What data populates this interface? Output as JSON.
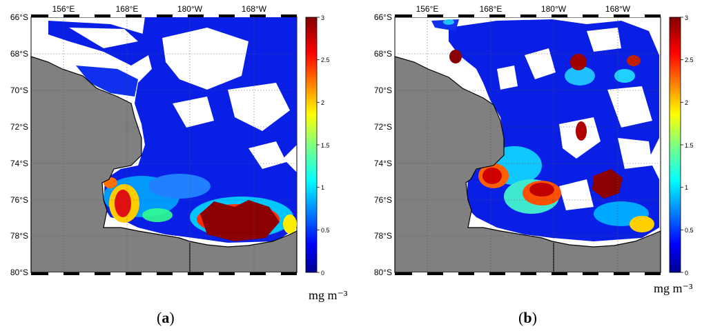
{
  "panels": [
    {
      "id": "a",
      "label": "a",
      "lon_ticks": [
        "156°E",
        "168°E",
        "180°W",
        "168°W"
      ],
      "lat_ticks": [
        "66°S",
        "68°S",
        "70°S",
        "72°S",
        "74°S",
        "76°S",
        "78°S",
        "80°S"
      ],
      "colorbar_ticks": [
        "3",
        "2.5",
        "2",
        "1.5",
        "1",
        "0.5",
        "0"
      ],
      "unit": "mg m⁻³"
    },
    {
      "id": "b",
      "label": "b",
      "lon_ticks": [
        "156°E",
        "168°E",
        "180°W",
        "168°W"
      ],
      "lat_ticks": [
        "66°S",
        "68°S",
        "70°S",
        "72°S",
        "74°S",
        "76°S",
        "78°S",
        "80°S"
      ],
      "colorbar_ticks": [
        "3",
        "2.5",
        "2",
        "1.5",
        "1",
        "0.5",
        "0"
      ],
      "unit": "mg m⁻³"
    }
  ],
  "colors": {
    "land": "#808080",
    "coast": "#000000",
    "colormap": [
      "#00008f",
      "#0000ff",
      "#0080ff",
      "#00ffff",
      "#80ff80",
      "#ffff00",
      "#ff8000",
      "#ff0000",
      "#800000"
    ]
  }
}
